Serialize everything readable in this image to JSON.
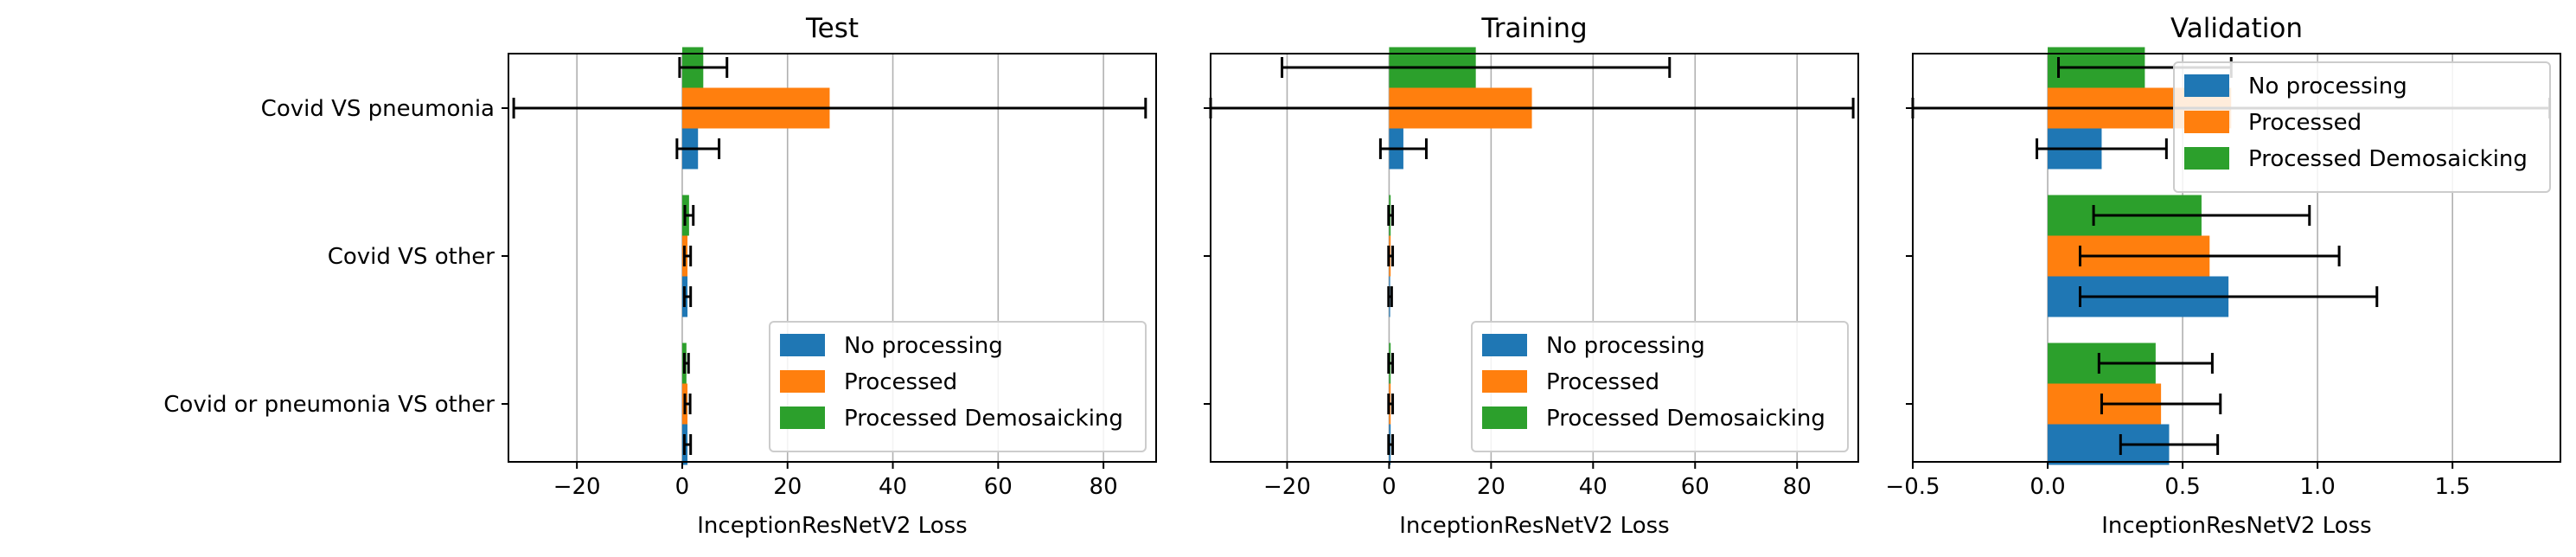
{
  "chart_data": [
    {
      "type": "bar",
      "orientation": "horizontal",
      "title": "Test",
      "xlabel": "InceptionResNetV2 Loss",
      "xlim": [
        -33,
        90
      ],
      "xticks": [
        -20,
        0,
        20,
        40,
        60,
        80
      ],
      "xtick_labels": [
        "−20",
        "0",
        "20",
        "40",
        "60",
        "80"
      ],
      "show_category_labels": true,
      "grid": "x",
      "legend": "lower-right",
      "categories": [
        "Covid VS pneumonia",
        "Covid VS other",
        "Covid or pneumonia VS other"
      ],
      "series": [
        {
          "name": "No processing",
          "color": "#1f77b4",
          "values": [
            3.0,
            1.0,
            1.0
          ],
          "errors": [
            4.0,
            0.6,
            0.6
          ]
        },
        {
          "name": "Processed",
          "color": "#ff7f0e",
          "values": [
            28.0,
            1.0,
            1.0
          ],
          "errors": [
            60.0,
            0.6,
            0.5
          ]
        },
        {
          "name": "Processed Demosaicking",
          "color": "#2ca02c",
          "values": [
            4.0,
            1.3,
            0.8
          ],
          "errors": [
            4.5,
            0.8,
            0.4
          ]
        }
      ]
    },
    {
      "type": "bar",
      "orientation": "horizontal",
      "title": "Training",
      "xlabel": "InceptionResNetV2 Loss",
      "xlim": [
        -35,
        92
      ],
      "xticks": [
        -20,
        0,
        20,
        40,
        60,
        80
      ],
      "xtick_labels": [
        "−20",
        "0",
        "20",
        "40",
        "60",
        "80"
      ],
      "show_category_labels": false,
      "grid": "x",
      "legend": "lower-right",
      "categories": [
        "Covid VS pneumonia",
        "Covid VS other",
        "Covid or pneumonia VS other"
      ],
      "series": [
        {
          "name": "No processing",
          "color": "#1f77b4",
          "values": [
            2.8,
            0.2,
            0.3
          ],
          "errors": [
            4.5,
            0.3,
            0.4
          ]
        },
        {
          "name": "Processed",
          "color": "#ff7f0e",
          "values": [
            28.0,
            0.3,
            0.3
          ],
          "errors": [
            63.0,
            0.4,
            0.4
          ]
        },
        {
          "name": "Processed Demosaicking",
          "color": "#2ca02c",
          "values": [
            17.0,
            0.3,
            0.3
          ],
          "errors": [
            38.0,
            0.4,
            0.4
          ]
        }
      ]
    },
    {
      "type": "bar",
      "orientation": "horizontal",
      "title": "Validation",
      "xlabel": "InceptionResNetV2 Loss",
      "xlim": [
        -0.5,
        1.9
      ],
      "xticks": [
        -0.5,
        0.0,
        0.5,
        1.0,
        1.5
      ],
      "xtick_labels": [
        "−0.5",
        "0.0",
        "0.5",
        "1.0",
        "1.5"
      ],
      "show_category_labels": false,
      "grid": "x",
      "legend": "upper-right",
      "categories": [
        "Covid VS pneumonia",
        "Covid VS other",
        "Covid or pneumonia VS other"
      ],
      "series": [
        {
          "name": "No processing",
          "color": "#1f77b4",
          "values": [
            0.2,
            0.67,
            0.45
          ],
          "errors": [
            0.24,
            0.55,
            0.18
          ]
        },
        {
          "name": "Processed",
          "color": "#ff7f0e",
          "values": [
            0.68,
            0.6,
            0.42
          ],
          "errors": [
            1.18,
            0.48,
            0.22
          ]
        },
        {
          "name": "Processed Demosaicking",
          "color": "#2ca02c",
          "values": [
            0.36,
            0.57,
            0.4
          ],
          "errors": [
            0.32,
            0.4,
            0.21
          ]
        }
      ]
    }
  ]
}
